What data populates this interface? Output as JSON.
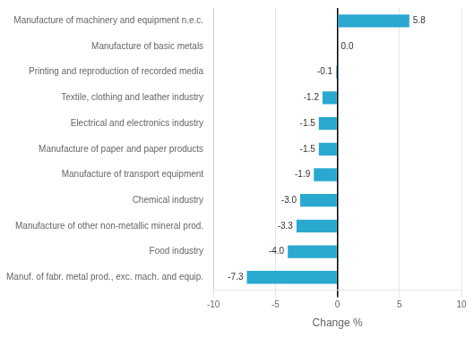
{
  "chart_data": {
    "type": "bar",
    "orientation": "horizontal",
    "categories": [
      "Manuf. of fabr. metal prod., exc. mach. and equip.",
      "Food industry",
      "Manufacture of other non-metallic mineral prod.",
      "Chemical industry",
      "Manufacture of transport equipment",
      "Manufacture of paper and paper products",
      "Electrical and electronics industry",
      "Textile, clothing and leather industry",
      "Printing and reproduction of recorded media",
      "Manufacture of basic metals",
      "Manufacture of machinery and equipment n.e.c."
    ],
    "values": [
      -7.3,
      -4.0,
      -3.3,
      -3.0,
      -1.9,
      -1.5,
      -1.5,
      -1.2,
      -0.1,
      0.0,
      5.8
    ],
    "value_labels": [
      "-7.3",
      "-4.0",
      "-3.3",
      "-3.0",
      "-1.9",
      "-1.5",
      "-1.5",
      "-1.2",
      "-0.1",
      "0.0",
      "5.8"
    ],
    "color": "#29a8d0",
    "xlabel": "Change %",
    "xlim": [
      -10,
      10
    ],
    "xticks": [
      -10,
      -5,
      0,
      5,
      10
    ],
    "grid": true,
    "data_labels": true
  }
}
